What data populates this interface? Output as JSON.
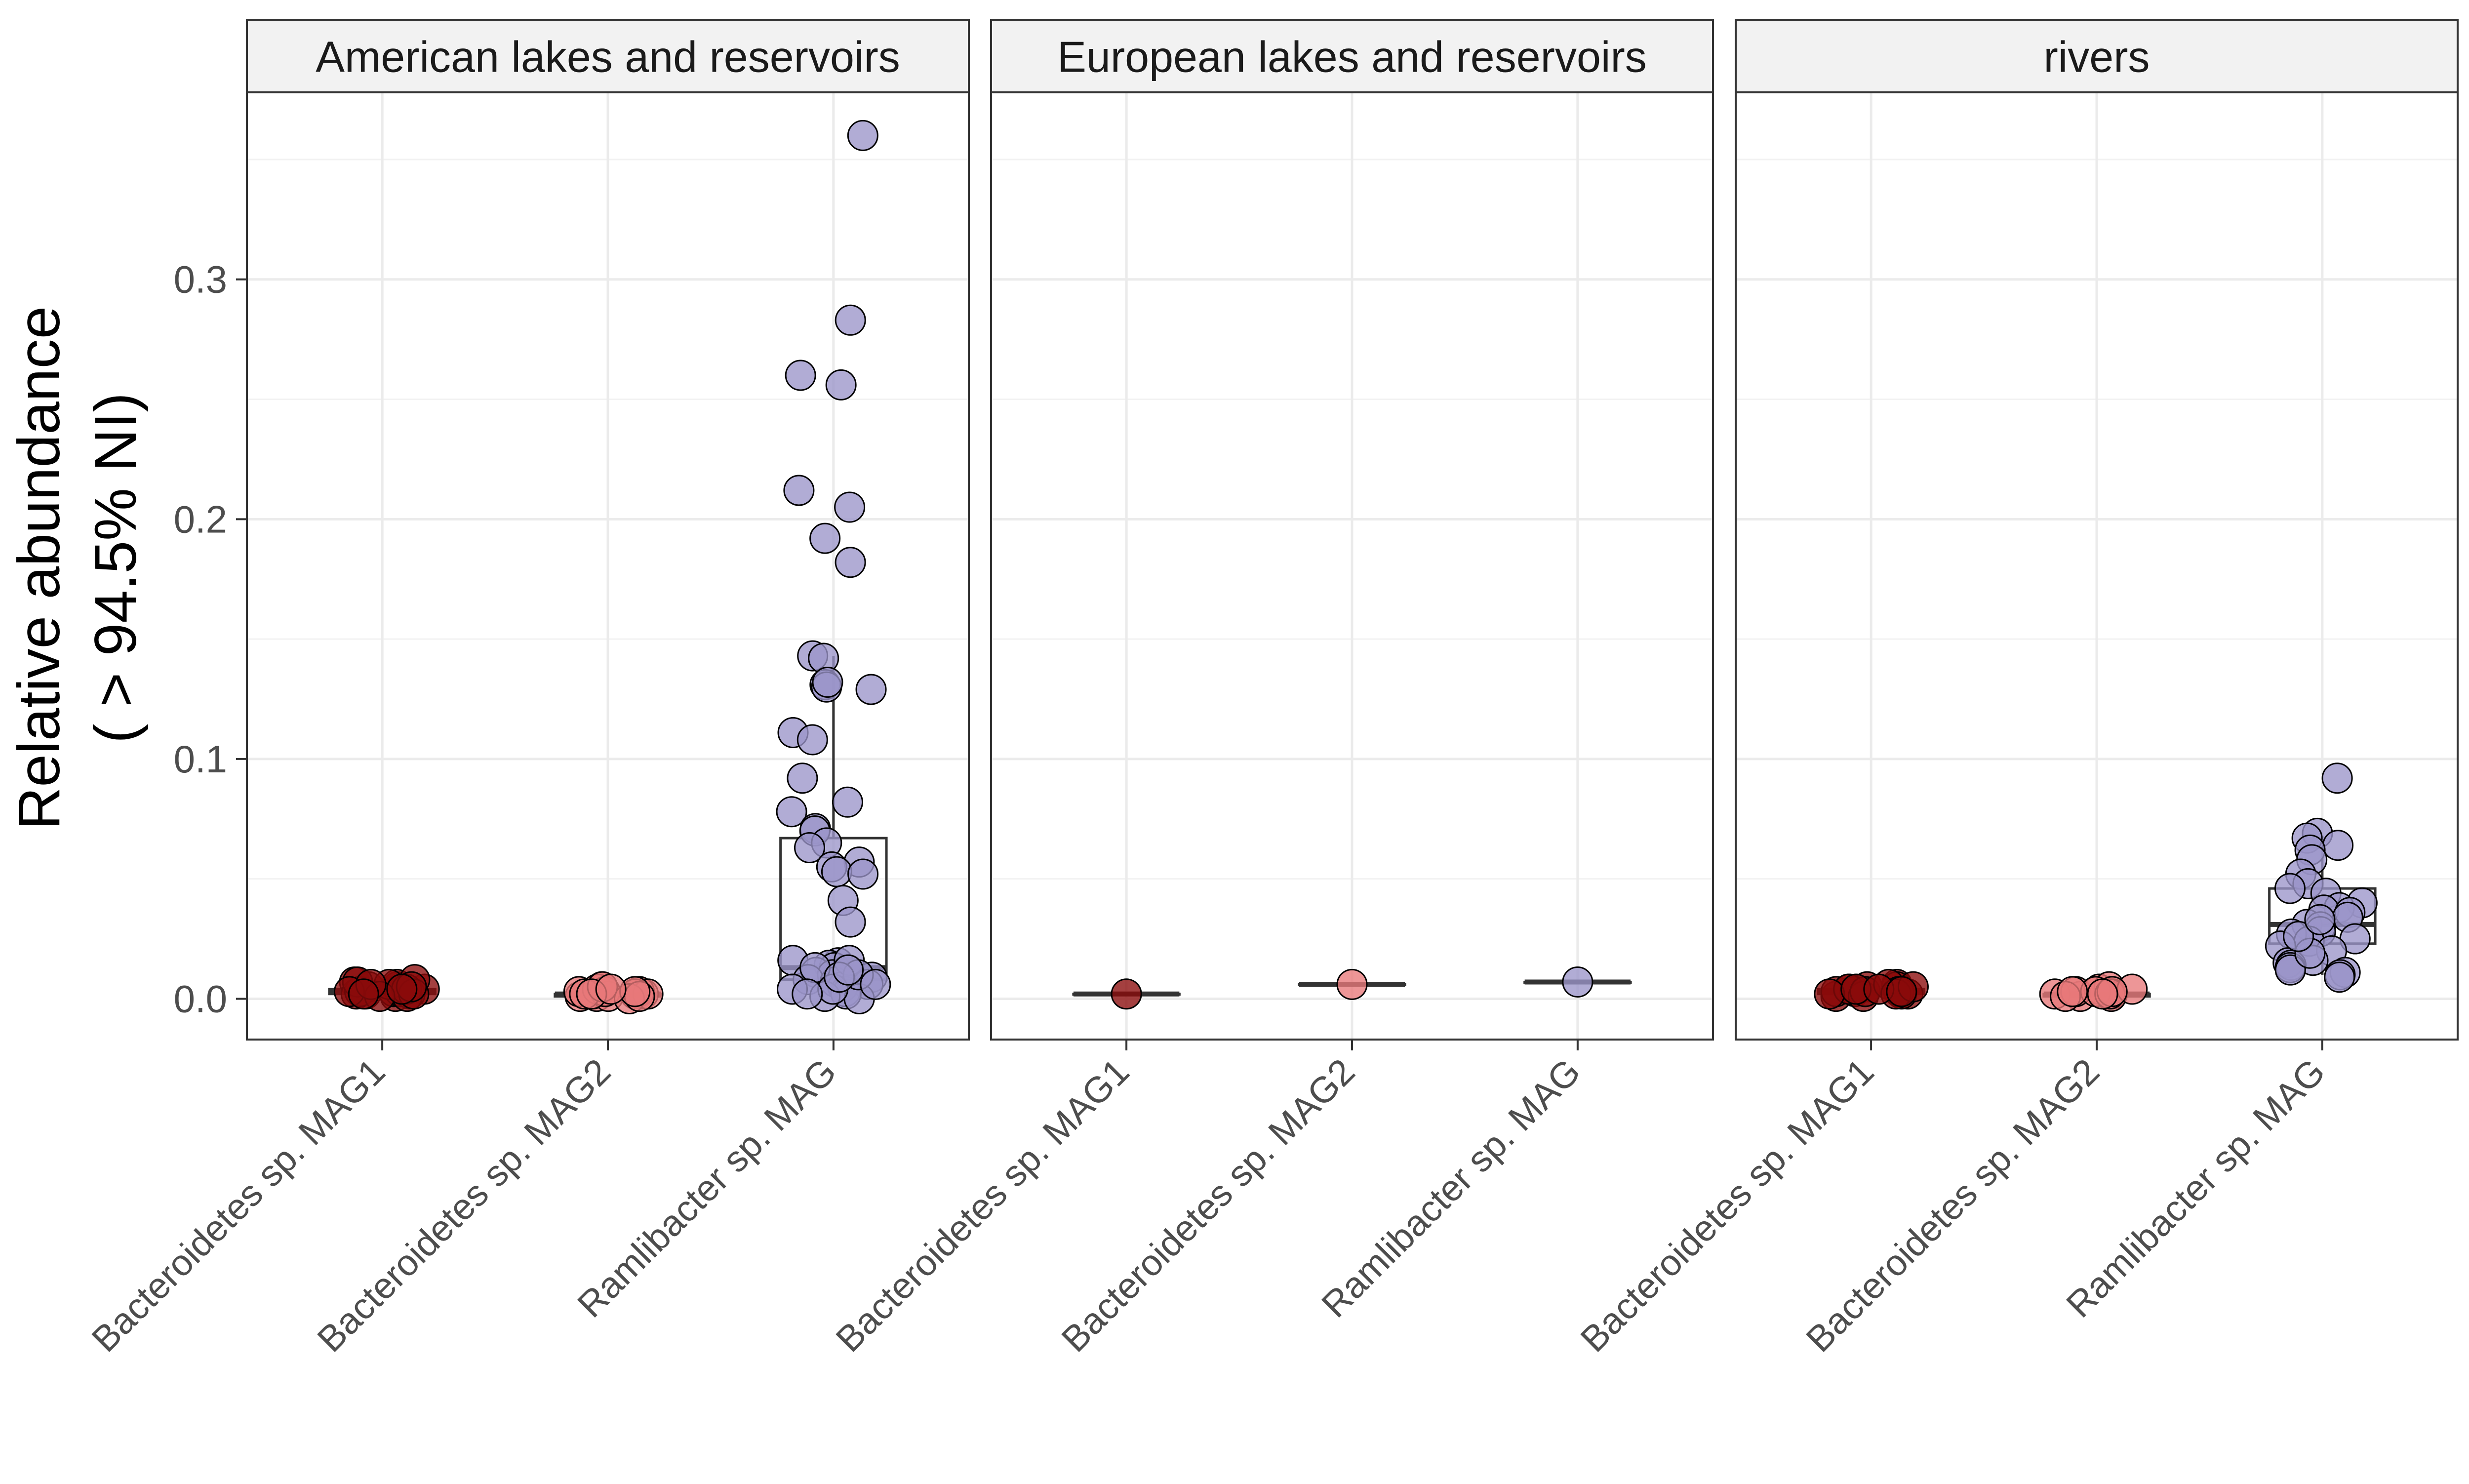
{
  "chart_data": {
    "type": "box-jitter",
    "ylabel_line1": "Relative abundance",
    "ylabel_line2": "( > 94.5% NI)",
    "xlabel": "",
    "ylim": [
      -0.017,
      0.378
    ],
    "yticks": [
      0.0,
      0.1,
      0.2,
      0.3
    ],
    "ytick_labels": [
      "0.0",
      "0.1",
      "0.2",
      "0.3"
    ],
    "grid": true,
    "categories": [
      "Bacteroidetes sp. MAG1",
      "Bacteroidetes sp. MAG2",
      "Ramlibacter sp. MAG"
    ],
    "series_colors": [
      "#8B0A0A",
      "#E8797A",
      "#9B95C9"
    ],
    "panels": [
      {
        "title": "American lakes and reservoirs",
        "boxes": [
          {
            "category": "Bacteroidetes sp. MAG1",
            "q1": 0.002,
            "median": 0.003,
            "q3": 0.004,
            "whisker_low": 0.001,
            "whisker_high": 0.006,
            "points": [
              0.001,
              0.002,
              0.003,
              0.004,
              0.005,
              0.006,
              0.007,
              0.008,
              0.003,
              0.002,
              0.004,
              0.005,
              0.001,
              0.002,
              0.006,
              0.003,
              0.007,
              0.004,
              0.002,
              0.005,
              0.003,
              0.001,
              0.004,
              0.006,
              0.002
            ]
          },
          {
            "category": "Bacteroidetes sp. MAG2",
            "q1": 0.001,
            "median": 0.002,
            "q3": 0.002,
            "whisker_low": 0.0,
            "whisker_high": 0.004,
            "points": [
              0.001,
              0.002,
              0.003,
              0.004,
              0.005,
              0.002,
              0.001,
              0.003,
              0.002,
              0.004,
              0.001,
              0.002,
              0.003,
              0.0,
              0.002,
              0.005,
              0.001,
              0.003,
              0.002,
              0.004
            ]
          },
          {
            "category": "Ramlibacter sp. MAG",
            "q1": 0.008,
            "median": 0.013,
            "q3": 0.067,
            "whisker_low": 0.0,
            "whisker_high": 0.143,
            "points": [
              0.36,
              0.283,
              0.26,
              0.256,
              0.212,
              0.205,
              0.192,
              0.182,
              0.143,
              0.142,
              0.131,
              0.13,
              0.129,
              0.132,
              0.111,
              0.108,
              0.092,
              0.082,
              0.078,
              0.071,
              0.07,
              0.065,
              0.063,
              0.057,
              0.055,
              0.053,
              0.052,
              0.041,
              0.032,
              0.016,
              0.015,
              0.014,
              0.013,
              0.012,
              0.011,
              0.01,
              0.009,
              0.008,
              0.007,
              0.006,
              0.005,
              0.004,
              0.003,
              0.002,
              0.001,
              0.0,
              0.016,
              0.013,
              0.01,
              0.006,
              0.004,
              0.002,
              0.009,
              0.012
            ]
          }
        ]
      },
      {
        "title": "European lakes and reservoirs",
        "boxes": [
          {
            "category": "Bacteroidetes sp. MAG1",
            "q1": 0.002,
            "median": 0.002,
            "q3": 0.002,
            "whisker_low": 0.002,
            "whisker_high": 0.002,
            "points": [
              0.002
            ]
          },
          {
            "category": "Bacteroidetes sp. MAG2",
            "q1": 0.006,
            "median": 0.006,
            "q3": 0.006,
            "whisker_low": 0.006,
            "whisker_high": 0.006,
            "points": [
              0.006
            ]
          },
          {
            "category": "Ramlibacter sp. MAG",
            "q1": 0.007,
            "median": 0.007,
            "q3": 0.007,
            "whisker_low": 0.007,
            "whisker_high": 0.007,
            "points": [
              0.007
            ]
          }
        ]
      },
      {
        "title": "rivers",
        "boxes": [
          {
            "category": "Bacteroidetes sp. MAG1",
            "q1": 0.002,
            "median": 0.003,
            "q3": 0.004,
            "whisker_low": 0.001,
            "whisker_high": 0.006,
            "points": [
              0.001,
              0.002,
              0.003,
              0.004,
              0.005,
              0.006,
              0.003,
              0.002,
              0.004,
              0.005,
              0.001,
              0.003,
              0.002,
              0.004,
              0.006,
              0.003,
              0.002,
              0.005,
              0.004,
              0.003
            ]
          },
          {
            "category": "Bacteroidetes sp. MAG2",
            "q1": 0.001,
            "median": 0.002,
            "q3": 0.002,
            "whisker_low": 0.0,
            "whisker_high": 0.004,
            "points": [
              0.001,
              0.002,
              0.003,
              0.004,
              0.005,
              0.002,
              0.001,
              0.003,
              0.002,
              0.004,
              0.003,
              0.001,
              0.002,
              0.003
            ]
          },
          {
            "category": "Ramlibacter sp. MAG",
            "q1": 0.023,
            "median": 0.031,
            "q3": 0.046,
            "whisker_low": 0.01,
            "whisker_high": 0.068,
            "points": [
              0.092,
              0.069,
              0.067,
              0.064,
              0.062,
              0.058,
              0.052,
              0.048,
              0.046,
              0.044,
              0.04,
              0.038,
              0.037,
              0.036,
              0.034,
              0.031,
              0.03,
              0.028,
              0.027,
              0.025,
              0.024,
              0.022,
              0.02,
              0.016,
              0.015,
              0.014,
              0.013,
              0.012,
              0.011,
              0.01,
              0.009,
              0.019,
              0.026,
              0.033
            ]
          }
        ]
      }
    ]
  }
}
